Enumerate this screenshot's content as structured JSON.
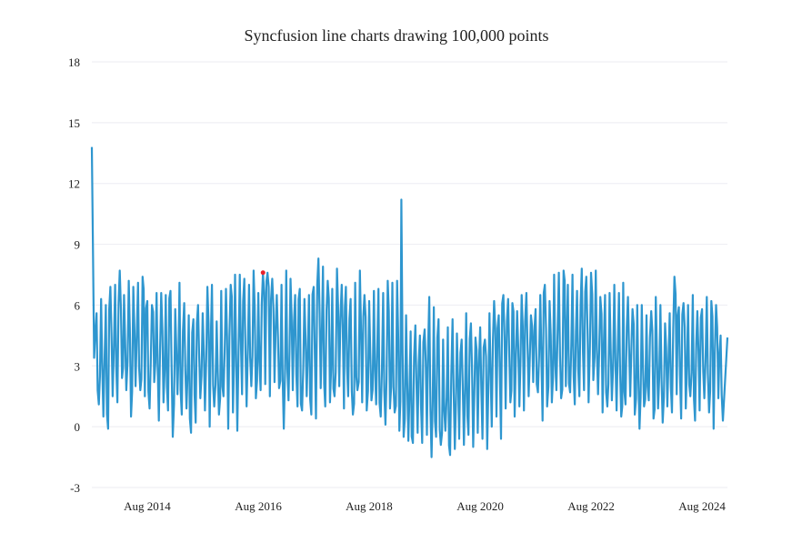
{
  "chart_data": {
    "type": "line",
    "title": "Syncfusion line charts drawing 100,000 points",
    "xlabel": "",
    "ylabel": "",
    "xlim": [
      "2013-08-01",
      "2025-01-15"
    ],
    "ylim": [
      -3,
      18
    ],
    "yticks": [
      -3,
      0,
      3,
      6,
      9,
      12,
      15,
      18
    ],
    "xticks": [
      {
        "date": "2014-08-01",
        "label": "Aug 2014"
      },
      {
        "date": "2016-08-01",
        "label": "Aug 2016"
      },
      {
        "date": "2018-08-01",
        "label": "Aug 2018"
      },
      {
        "date": "2020-08-01",
        "label": "Aug 2020"
      },
      {
        "date": "2022-08-01",
        "label": "Aug 2022"
      },
      {
        "date": "2024-08-01",
        "label": "Aug 2024"
      }
    ],
    "grid": true,
    "line_color": "#2e96cf",
    "marker": {
      "x": "2016-09-01",
      "y": 7.6,
      "color": "#e8202a"
    },
    "monthly_high_low": {
      "2013": [
        [
          13.8,
          3.4
        ],
        [
          5.6,
          1.1
        ],
        [
          6.3,
          0.5
        ],
        [
          6.0,
          -0.1
        ],
        [
          6.9,
          1.5
        ]
      ],
      "2014": [
        [
          7.0,
          1.2
        ],
        [
          7.7,
          2.4
        ],
        [
          6.5,
          1.8
        ],
        [
          7.2,
          0.5
        ],
        [
          6.9,
          2.0
        ],
        [
          7.1,
          1.8
        ],
        [
          7.4,
          1.5
        ],
        [
          6.2,
          0.9
        ],
        [
          6.0,
          2.2
        ],
        [
          6.6,
          0.3
        ],
        [
          6.6,
          1.2
        ],
        [
          6.5,
          0.8
        ]
      ],
      "2015": [
        [
          6.7,
          -0.5
        ],
        [
          5.8,
          1.6
        ],
        [
          7.1,
          0.6
        ],
        [
          6.1,
          0.9
        ],
        [
          5.5,
          -0.3
        ],
        [
          5.3,
          0.2
        ],
        [
          6.0,
          1.4
        ],
        [
          5.6,
          0.8
        ],
        [
          6.9,
          0.0
        ],
        [
          7.0,
          1.0
        ],
        [
          5.2,
          0.6
        ],
        [
          6.7,
          1.5
        ]
      ],
      "2016": [
        [
          6.8,
          -0.1
        ],
        [
          7.0,
          0.7
        ],
        [
          7.5,
          -0.2
        ],
        [
          7.5,
          1.6
        ],
        [
          7.3,
          1.0
        ],
        [
          7.0,
          2.0
        ],
        [
          7.7,
          1.4
        ],
        [
          6.6,
          1.8
        ],
        [
          7.6,
          2.1
        ],
        [
          7.6,
          1.5
        ],
        [
          7.3,
          2.2
        ],
        [
          6.5,
          1.9
        ]
      ],
      "2017": [
        [
          7.0,
          -0.1
        ],
        [
          7.7,
          1.3
        ],
        [
          7.3,
          1.8
        ],
        [
          6.5,
          1.0
        ],
        [
          6.8,
          0.8
        ],
        [
          6.3,
          1.5
        ],
        [
          6.5,
          0.6
        ],
        [
          6.9,
          0.4
        ],
        [
          8.3,
          1.9
        ],
        [
          7.9,
          1.0
        ],
        [
          7.2,
          1.2
        ],
        [
          6.8,
          1.5
        ]
      ],
      "2018": [
        [
          7.8,
          2.0
        ],
        [
          7.0,
          0.9
        ],
        [
          6.9,
          1.5
        ],
        [
          6.3,
          0.6
        ],
        [
          7.1,
          1.8
        ],
        [
          7.7,
          1.2
        ],
        [
          6.5,
          0.8
        ],
        [
          6.2,
          1.3
        ],
        [
          6.7,
          1.1
        ],
        [
          6.8,
          0.5
        ],
        [
          6.6,
          0.1
        ],
        [
          7.2,
          0.9
        ]
      ],
      "2019": [
        [
          7.1,
          0.7
        ],
        [
          7.2,
          -0.2
        ],
        [
          11.2,
          -0.5
        ],
        [
          5.5,
          -0.7
        ],
        [
          4.7,
          -0.8
        ],
        [
          5.0,
          -0.3
        ],
        [
          4.5,
          -0.8
        ],
        [
          4.8,
          -0.4
        ],
        [
          6.4,
          -1.5
        ],
        [
          5.9,
          -0.5
        ],
        [
          5.3,
          -0.9
        ],
        [
          4.3,
          -0.2
        ]
      ],
      "2020": [
        [
          4.9,
          -1.4
        ],
        [
          5.3,
          -1.1
        ],
        [
          4.6,
          -0.6
        ],
        [
          4.3,
          -0.9
        ],
        [
          5.6,
          -0.4
        ],
        [
          5.1,
          -1.0
        ],
        [
          4.4,
          -0.3
        ],
        [
          4.9,
          -0.6
        ],
        [
          4.3,
          -1.1
        ],
        [
          5.6,
          0.0
        ],
        [
          6.2,
          0.5
        ],
        [
          5.5,
          -0.6
        ]
      ],
      "2021": [
        [
          6.5,
          0.9
        ],
        [
          6.3,
          1.2
        ],
        [
          6.1,
          0.5
        ],
        [
          5.7,
          1.0
        ],
        [
          6.5,
          0.8
        ],
        [
          6.6,
          1.5
        ],
        [
          5.5,
          2.2
        ],
        [
          5.8,
          1.7
        ],
        [
          6.5,
          0.3
        ],
        [
          7.0,
          1.0
        ],
        [
          6.2,
          1.2
        ],
        [
          7.5,
          1.8
        ]
      ],
      "2022": [
        [
          7.6,
          1.4
        ],
        [
          7.7,
          2.0
        ],
        [
          7.0,
          1.7
        ],
        [
          7.5,
          1.1
        ],
        [
          6.7,
          1.5
        ],
        [
          7.8,
          1.8
        ],
        [
          7.4,
          1.2
        ],
        [
          7.6,
          2.3
        ],
        [
          7.7,
          1.6
        ],
        [
          6.4,
          0.7
        ],
        [
          6.5,
          1.0
        ],
        [
          6.6,
          1.3
        ]
      ],
      "2023": [
        [
          7.0,
          0.8
        ],
        [
          6.6,
          0.5
        ],
        [
          7.1,
          1.1
        ],
        [
          6.4,
          1.5
        ],
        [
          5.8,
          0.6
        ],
        [
          6.0,
          -0.1
        ],
        [
          6.0,
          1.0
        ],
        [
          5.5,
          1.3
        ],
        [
          5.7,
          0.4
        ],
        [
          6.4,
          0.9
        ],
        [
          6.0,
          0.2
        ],
        [
          5.1,
          1.0
        ]
      ],
      "2024": [
        [
          5.6,
          0.7
        ],
        [
          7.4,
          1.6
        ],
        [
          5.9,
          0.4
        ],
        [
          6.1,
          0.9
        ],
        [
          6.0,
          1.5
        ],
        [
          6.5,
          0.3
        ],
        [
          5.7,
          0.8
        ],
        [
          5.8,
          1.4
        ],
        [
          6.4,
          0.7
        ],
        [
          6.2,
          -0.1
        ],
        [
          6.0,
          1.4
        ],
        [
          4.5,
          0.3
        ]
      ]
    }
  }
}
